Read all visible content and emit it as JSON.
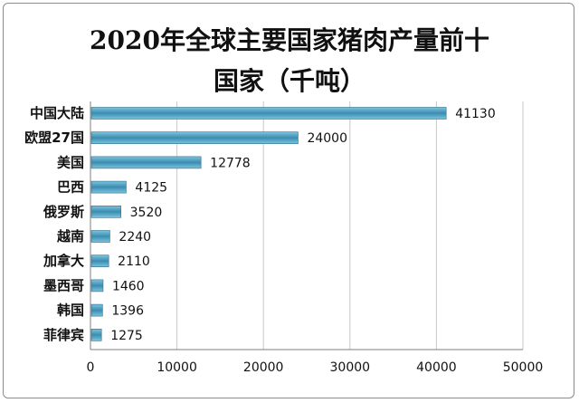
{
  "title_line1": "2020年全球主要国家猪肉产量前十",
  "title_line2": "国家（千吨）",
  "chart_data": {
    "type": "bar",
    "orientation": "horizontal",
    "title": "2020年全球主要国家猪肉产量前十国家（千吨）",
    "categories": [
      "中国大陆",
      "欧盟27国",
      "美国",
      "巴西",
      "俄罗斯",
      "越南",
      "加拿大",
      "墨西哥",
      "韩国",
      "菲律宾"
    ],
    "values": [
      41130,
      24000,
      12778,
      4125,
      3520,
      2240,
      2110,
      1460,
      1396,
      1275
    ],
    "value_labels": [
      "41130",
      "24000",
      "12778",
      "4125",
      "3520",
      "2240",
      "2110",
      "1460",
      "1396",
      "1275"
    ],
    "xlim": [
      0,
      50000
    ],
    "x_ticks": [
      "0",
      "10000",
      "20000",
      "30000",
      "40000",
      "50000"
    ],
    "x_tick_values": [
      0,
      10000,
      20000,
      30000,
      40000,
      50000
    ],
    "grid": "vertical",
    "legend": "none",
    "colors": {
      "bar_light": "#7ec4df",
      "bar_dark": "#3a8db0",
      "bar_stroke": "#2e6f8c",
      "grid": "#c8c8c8",
      "axis": "#7f7f7f"
    }
  }
}
